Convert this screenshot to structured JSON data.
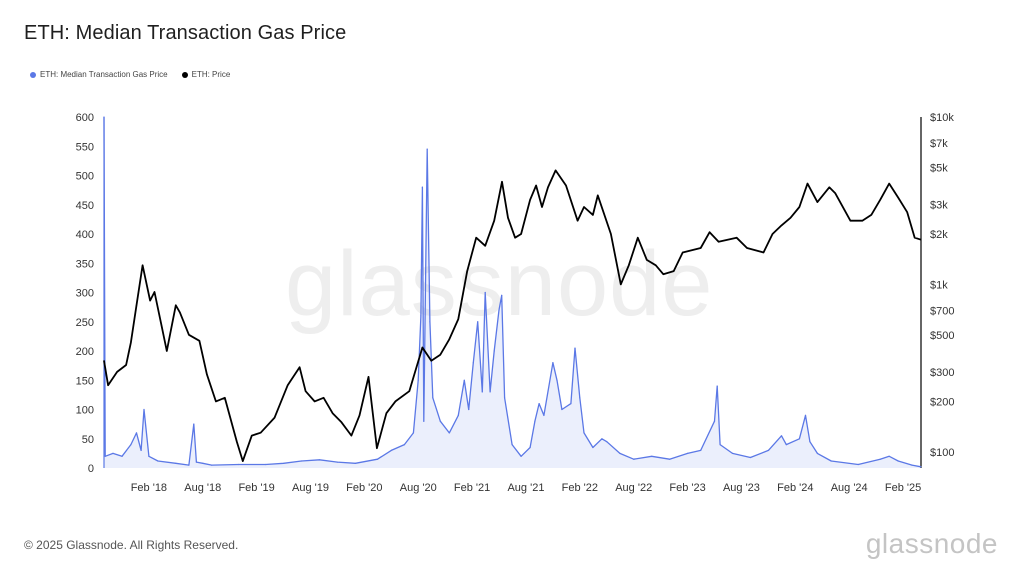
{
  "title": "ETH: Median Transaction Gas Price",
  "legend": [
    {
      "label": "ETH: Median Transaction Gas Price",
      "color": "#5b78e6"
    },
    {
      "label": "ETH: Price",
      "color": "#000000"
    }
  ],
  "watermark": "glassnode",
  "footer": "© 2025 Glassnode. All Rights Reserved.",
  "brand": "glassnode",
  "chart_data": {
    "type": "line",
    "title": "ETH: Median Transaction Gas Price",
    "x_range": [
      "2017-09",
      "2025-04"
    ],
    "x_ticks": [
      "Feb '18",
      "Aug '18",
      "Feb '19",
      "Aug '19",
      "Feb '20",
      "Aug '20",
      "Feb '21",
      "Aug '21",
      "Feb '22",
      "Aug '22",
      "Feb '23",
      "Aug '23",
      "Feb '24",
      "Aug '24",
      "Feb '25"
    ],
    "y_left": {
      "ticks": [
        0,
        50,
        100,
        150,
        200,
        250,
        300,
        350,
        400,
        450,
        500,
        550,
        600
      ],
      "ylim": [
        0,
        600
      ]
    },
    "y_right": {
      "scale": "log",
      "ticks": [
        100,
        200,
        300,
        500,
        700,
        1000,
        2000,
        3000,
        5000,
        7000,
        10000
      ],
      "tick_labels": [
        "$100",
        "$200",
        "$300",
        "$500",
        "$700",
        "$1k",
        "$2k",
        "$3k",
        "$5k",
        "$7k",
        "$10k"
      ],
      "ylim": [
        80,
        10000
      ]
    },
    "grid": false,
    "legend_position": "top-left",
    "series": [
      {
        "name": "ETH: Median Transaction Gas Price",
        "axis": "left",
        "color": "#5b78e6",
        "points": [
          [
            "2017-09-01",
            600
          ],
          [
            "2017-09-05",
            20
          ],
          [
            "2017-10-01",
            25
          ],
          [
            "2017-11-01",
            20
          ],
          [
            "2017-12-01",
            40
          ],
          [
            "2017-12-20",
            60
          ],
          [
            "2018-01-05",
            30
          ],
          [
            "2018-01-15",
            100
          ],
          [
            "2018-02-01",
            20
          ],
          [
            "2018-03-01",
            12
          ],
          [
            "2018-05-01",
            8
          ],
          [
            "2018-06-15",
            5
          ],
          [
            "2018-07-01",
            75
          ],
          [
            "2018-07-10",
            10
          ],
          [
            "2018-08-01",
            8
          ],
          [
            "2018-09-01",
            5
          ],
          [
            "2018-12-01",
            6
          ],
          [
            "2019-03-01",
            6
          ],
          [
            "2019-05-01",
            8
          ],
          [
            "2019-07-01",
            12
          ],
          [
            "2019-09-01",
            14
          ],
          [
            "2019-11-01",
            10
          ],
          [
            "2020-01-01",
            8
          ],
          [
            "2020-03-15",
            15
          ],
          [
            "2020-05-01",
            30
          ],
          [
            "2020-06-15",
            40
          ],
          [
            "2020-07-15",
            60
          ],
          [
            "2020-08-01",
            150
          ],
          [
            "2020-08-10",
            260
          ],
          [
            "2020-08-15",
            480
          ],
          [
            "2020-08-20",
            80
          ],
          [
            "2020-09-01",
            545
          ],
          [
            "2020-09-10",
            250
          ],
          [
            "2020-09-20",
            120
          ],
          [
            "2020-10-15",
            80
          ],
          [
            "2020-11-15",
            60
          ],
          [
            "2020-12-15",
            90
          ],
          [
            "2021-01-05",
            150
          ],
          [
            "2021-01-20",
            100
          ],
          [
            "2021-02-05",
            180
          ],
          [
            "2021-02-20",
            250
          ],
          [
            "2021-03-05",
            130
          ],
          [
            "2021-03-15",
            300
          ],
          [
            "2021-04-01",
            130
          ],
          [
            "2021-04-15",
            200
          ],
          [
            "2021-05-01",
            270
          ],
          [
            "2021-05-10",
            295
          ],
          [
            "2021-05-20",
            120
          ],
          [
            "2021-06-15",
            40
          ],
          [
            "2021-07-15",
            20
          ],
          [
            "2021-08-15",
            35
          ],
          [
            "2021-09-01",
            80
          ],
          [
            "2021-09-15",
            110
          ],
          [
            "2021-10-01",
            90
          ],
          [
            "2021-11-01",
            180
          ],
          [
            "2021-11-15",
            150
          ],
          [
            "2021-12-01",
            100
          ],
          [
            "2022-01-01",
            110
          ],
          [
            "2022-01-15",
            205
          ],
          [
            "2022-02-01",
            120
          ],
          [
            "2022-02-15",
            60
          ],
          [
            "2022-03-15",
            35
          ],
          [
            "2022-04-15",
            50
          ],
          [
            "2022-05-01",
            45
          ],
          [
            "2022-06-15",
            25
          ],
          [
            "2022-08-01",
            15
          ],
          [
            "2022-10-01",
            20
          ],
          [
            "2022-12-01",
            15
          ],
          [
            "2023-02-01",
            25
          ],
          [
            "2023-03-15",
            30
          ],
          [
            "2023-05-01",
            80
          ],
          [
            "2023-05-10",
            140
          ],
          [
            "2023-05-20",
            40
          ],
          [
            "2023-07-01",
            25
          ],
          [
            "2023-09-01",
            18
          ],
          [
            "2023-11-01",
            30
          ],
          [
            "2023-12-15",
            55
          ],
          [
            "2024-01-01",
            40
          ],
          [
            "2024-02-15",
            50
          ],
          [
            "2024-03-05",
            90
          ],
          [
            "2024-03-20",
            45
          ],
          [
            "2024-04-15",
            25
          ],
          [
            "2024-06-01",
            12
          ],
          [
            "2024-09-01",
            6
          ],
          [
            "2024-11-15",
            15
          ],
          [
            "2024-12-15",
            20
          ],
          [
            "2025-01-15",
            12
          ],
          [
            "2025-03-01",
            5
          ],
          [
            "2025-03-31",
            2
          ]
        ]
      },
      {
        "name": "ETH: Price",
        "axis": "right",
        "color": "#000000",
        "points": [
          [
            "2017-09-01",
            350
          ],
          [
            "2017-09-15",
            250
          ],
          [
            "2017-10-15",
            300
          ],
          [
            "2017-11-15",
            330
          ],
          [
            "2017-12-01",
            450
          ],
          [
            "2017-12-20",
            750
          ],
          [
            "2018-01-10",
            1300
          ],
          [
            "2018-02-05",
            800
          ],
          [
            "2018-02-20",
            900
          ],
          [
            "2018-03-15",
            550
          ],
          [
            "2018-04-01",
            400
          ],
          [
            "2018-05-01",
            750
          ],
          [
            "2018-05-15",
            680
          ],
          [
            "2018-06-15",
            500
          ],
          [
            "2018-07-20",
            460
          ],
          [
            "2018-08-15",
            290
          ],
          [
            "2018-09-15",
            200
          ],
          [
            "2018-10-15",
            210
          ],
          [
            "2018-11-25",
            115
          ],
          [
            "2018-12-15",
            88
          ],
          [
            "2019-01-15",
            125
          ],
          [
            "2019-02-15",
            130
          ],
          [
            "2019-04-01",
            160
          ],
          [
            "2019-05-15",
            250
          ],
          [
            "2019-06-25",
            320
          ],
          [
            "2019-07-15",
            230
          ],
          [
            "2019-08-15",
            200
          ],
          [
            "2019-09-15",
            210
          ],
          [
            "2019-10-15",
            170
          ],
          [
            "2019-11-15",
            150
          ],
          [
            "2019-12-18",
            125
          ],
          [
            "2020-01-15",
            165
          ],
          [
            "2020-02-15",
            280
          ],
          [
            "2020-03-13",
            105
          ],
          [
            "2020-04-15",
            170
          ],
          [
            "2020-05-15",
            200
          ],
          [
            "2020-07-01",
            230
          ],
          [
            "2020-08-15",
            420
          ],
          [
            "2020-09-15",
            350
          ],
          [
            "2020-10-15",
            380
          ],
          [
            "2020-11-15",
            470
          ],
          [
            "2020-12-15",
            620
          ],
          [
            "2021-01-15",
            1200
          ],
          [
            "2021-02-15",
            1900
          ],
          [
            "2021-03-15",
            1700
          ],
          [
            "2021-04-15",
            2400
          ],
          [
            "2021-05-11",
            4100
          ],
          [
            "2021-06-01",
            2500
          ],
          [
            "2021-06-25",
            1900
          ],
          [
            "2021-07-15",
            2000
          ],
          [
            "2021-08-15",
            3200
          ],
          [
            "2021-09-05",
            3900
          ],
          [
            "2021-09-25",
            2900
          ],
          [
            "2021-10-15",
            3800
          ],
          [
            "2021-11-10",
            4800
          ],
          [
            "2021-12-15",
            3900
          ],
          [
            "2022-01-24",
            2400
          ],
          [
            "2022-02-15",
            2900
          ],
          [
            "2022-03-15",
            2600
          ],
          [
            "2022-04-01",
            3400
          ],
          [
            "2022-05-15",
            2000
          ],
          [
            "2022-06-18",
            1000
          ],
          [
            "2022-07-15",
            1300
          ],
          [
            "2022-08-15",
            1900
          ],
          [
            "2022-09-15",
            1400
          ],
          [
            "2022-10-15",
            1300
          ],
          [
            "2022-11-10",
            1150
          ],
          [
            "2022-12-15",
            1200
          ],
          [
            "2023-01-15",
            1550
          ],
          [
            "2023-03-15",
            1650
          ],
          [
            "2023-04-15",
            2050
          ],
          [
            "2023-05-15",
            1800
          ],
          [
            "2023-07-15",
            1900
          ],
          [
            "2023-08-20",
            1650
          ],
          [
            "2023-10-15",
            1550
          ],
          [
            "2023-11-15",
            2000
          ],
          [
            "2023-12-15",
            2250
          ],
          [
            "2024-01-15",
            2500
          ],
          [
            "2024-02-15",
            2900
          ],
          [
            "2024-03-12",
            4000
          ],
          [
            "2024-04-15",
            3100
          ],
          [
            "2024-05-25",
            3800
          ],
          [
            "2024-06-15",
            3500
          ],
          [
            "2024-08-05",
            2400
          ],
          [
            "2024-09-15",
            2400
          ],
          [
            "2024-10-15",
            2600
          ],
          [
            "2024-11-15",
            3200
          ],
          [
            "2024-12-15",
            4000
          ],
          [
            "2025-01-15",
            3300
          ],
          [
            "2025-02-15",
            2700
          ],
          [
            "2025-03-10",
            1900
          ],
          [
            "2025-03-31",
            1850
          ]
        ]
      }
    ]
  }
}
